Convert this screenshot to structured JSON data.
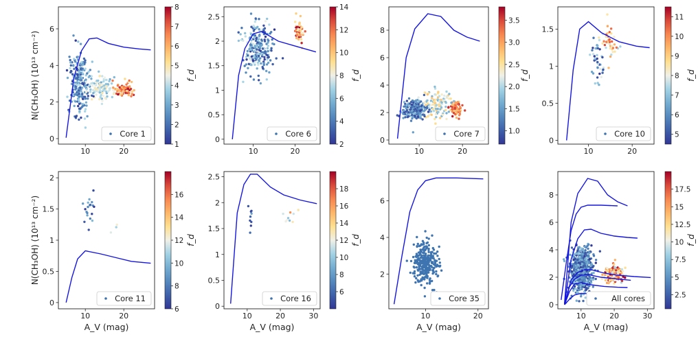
{
  "figure": {
    "ylabel_text": "N(CH₃OH) (10¹³ cm⁻²)",
    "xlabel_text": "A_V (mag)",
    "colorbar_label": "f_d",
    "colors": {
      "model_line": "#1515e0",
      "point_default": "#3e74b0",
      "frame": "#222222"
    }
  },
  "chart_data": [
    {
      "id": "core1",
      "type": "scatter",
      "title": "",
      "legend": "Core 1",
      "xlabel": "",
      "ylabel": "N(CH₃OH) (10¹³ cm⁻²)",
      "xlim": [
        3,
        28
      ],
      "ylim": [
        -0.3,
        7.2
      ],
      "xticks": [
        10,
        20
      ],
      "yticks": [
        0,
        2,
        4,
        6
      ],
      "colorbar": {
        "range": [
          1,
          8
        ],
        "ticks": [
          1,
          2,
          3,
          4,
          5,
          6,
          7,
          8
        ]
      },
      "seed": 1,
      "n": 420,
      "model_line": [
        [
          5,
          0.05
        ],
        [
          7,
          3.3
        ],
        [
          9,
          4.8
        ],
        [
          11,
          5.45
        ],
        [
          13,
          5.5
        ],
        [
          16,
          5.2
        ],
        [
          20,
          5.0
        ],
        [
          24,
          4.9
        ],
        [
          27,
          4.85
        ]
      ],
      "clusters": [
        {
          "cx": 8.5,
          "cy": 3.0,
          "sx": 2.2,
          "sy": 1.2,
          "fd": [
            1,
            4
          ],
          "w": 0.6
        },
        {
          "cx": 14,
          "cy": 2.8,
          "sx": 3.0,
          "sy": 0.45,
          "fd": [
            3,
            5
          ],
          "w": 0.25
        },
        {
          "cx": 20,
          "cy": 2.7,
          "sx": 2.5,
          "sy": 0.25,
          "fd": [
            5,
            8
          ],
          "w": 0.15
        }
      ]
    },
    {
      "id": "core6",
      "type": "scatter",
      "legend": "Core 6",
      "xlabel": "",
      "ylabel": "",
      "xlim": [
        3,
        26
      ],
      "ylim": [
        -0.1,
        2.7
      ],
      "xticks": [
        10,
        20
      ],
      "yticks": [
        0.0,
        0.5,
        1.0,
        1.5,
        2.0,
        2.5
      ],
      "colorbar": {
        "range": [
          2,
          14
        ],
        "ticks": [
          2,
          4,
          6,
          8,
          10,
          12,
          14
        ]
      },
      "seed": 6,
      "n": 300,
      "model_line": [
        [
          5,
          0.0
        ],
        [
          6.5,
          1.3
        ],
        [
          8,
          1.85
        ],
        [
          10,
          2.15
        ],
        [
          12,
          2.2
        ],
        [
          16,
          2.0
        ],
        [
          20,
          1.9
        ],
        [
          25,
          1.78
        ]
      ],
      "clusters": [
        {
          "cx": 11,
          "cy": 1.85,
          "sx": 3.2,
          "sy": 0.35,
          "fd": [
            2,
            8
          ],
          "w": 0.8
        },
        {
          "cx": 21,
          "cy": 2.2,
          "sx": 1.0,
          "sy": 0.15,
          "fd": [
            8,
            14
          ],
          "w": 0.2
        }
      ]
    },
    {
      "id": "core7",
      "type": "scatter",
      "legend": "Core 7",
      "xlabel": "",
      "ylabel": "",
      "xlim": [
        3,
        26
      ],
      "ylim": [
        -0.3,
        9.7
      ],
      "xticks": [
        10,
        20
      ],
      "yticks": [
        0,
        2,
        4,
        6,
        8
      ],
      "colorbar": {
        "range": [
          0.7,
          3.8
        ],
        "ticks": [
          1.0,
          1.5,
          2.0,
          2.5,
          3.0,
          3.5
        ]
      },
      "seed": 7,
      "n": 380,
      "model_line": [
        [
          5,
          0.1
        ],
        [
          7,
          6.0
        ],
        [
          9,
          8.1
        ],
        [
          12,
          9.2
        ],
        [
          15,
          9.0
        ],
        [
          18,
          8.0
        ],
        [
          21,
          7.5
        ],
        [
          24,
          7.2
        ]
      ],
      "clusters": [
        {
          "cx": 9,
          "cy": 2.2,
          "sx": 2.5,
          "sy": 0.5,
          "fd": [
            0.8,
            1.8
          ],
          "w": 0.5
        },
        {
          "cx": 14,
          "cy": 2.6,
          "sx": 3,
          "sy": 0.7,
          "fd": [
            1.6,
            2.8
          ],
          "w": 0.35
        },
        {
          "cx": 18.5,
          "cy": 2.3,
          "sx": 1.5,
          "sy": 0.35,
          "fd": [
            2.6,
            3.7
          ],
          "w": 0.15
        }
      ]
    },
    {
      "id": "core10",
      "type": "scatter",
      "legend": "Core 10",
      "xlabel": "",
      "ylabel": "",
      "xlim": [
        3,
        25
      ],
      "ylim": [
        -0.05,
        1.8
      ],
      "xticks": [
        10,
        20
      ],
      "yticks": [
        0.0,
        0.5,
        1.0,
        1.5
      ],
      "colorbar": {
        "range": [
          4.5,
          11.5
        ],
        "ticks": [
          5,
          6,
          7,
          8,
          9,
          10,
          11
        ]
      },
      "seed": 10,
      "n": 85,
      "model_line": [
        [
          5,
          0.0
        ],
        [
          6.5,
          0.95
        ],
        [
          8,
          1.5
        ],
        [
          10,
          1.6
        ],
        [
          13,
          1.45
        ],
        [
          17,
          1.33
        ],
        [
          21,
          1.27
        ],
        [
          24,
          1.25
        ]
      ],
      "clusters": [
        {
          "cx": 12,
          "cy": 1.1,
          "sx": 1.5,
          "sy": 0.2,
          "fd": [
            4.5,
            8
          ],
          "w": 0.5
        },
        {
          "cx": 14.5,
          "cy": 1.35,
          "sx": 2.0,
          "sy": 0.18,
          "fd": [
            7,
            11
          ],
          "w": 0.5
        }
      ]
    },
    {
      "id": "core11",
      "type": "scatter",
      "legend": "Core 11",
      "xlabel": "A_V (mag)",
      "ylabel": "N(CH₃OH) (10¹³ cm⁻²)",
      "xlim": [
        3,
        28
      ],
      "ylim": [
        -0.1,
        2.1
      ],
      "xticks": [
        10,
        20
      ],
      "yticks": [
        0.0,
        0.5,
        1.0,
        1.5,
        2.0
      ],
      "colorbar": {
        "range": [
          6,
          18
        ],
        "ticks": [
          6,
          8,
          10,
          12,
          14,
          16
        ]
      },
      "seed": 11,
      "n": 22,
      "model_line": [
        [
          5,
          0.0
        ],
        [
          6.5,
          0.4
        ],
        [
          8,
          0.7
        ],
        [
          10,
          0.83
        ],
        [
          14,
          0.78
        ],
        [
          18,
          0.72
        ],
        [
          22,
          0.66
        ],
        [
          27,
          0.63
        ]
      ],
      "clusters": [
        {
          "cx": 11,
          "cy": 1.5,
          "sx": 1.5,
          "sy": 0.25,
          "fd": [
            6,
            10
          ],
          "w": 0.75
        },
        {
          "cx": 16,
          "cy": 1.2,
          "sx": 3,
          "sy": 0.1,
          "fd": [
            10,
            14
          ],
          "w": 0.25
        }
      ]
    },
    {
      "id": "core16",
      "type": "scatter",
      "legend": "Core 16",
      "xlabel": "A_V (mag)",
      "ylabel": "",
      "xlim": [
        3,
        32
      ],
      "ylim": [
        -0.05,
        2.6
      ],
      "xticks": [
        10,
        20,
        30
      ],
      "yticks": [
        0.0,
        0.5,
        1.0,
        1.5,
        2.0,
        2.5
      ],
      "colorbar": {
        "range": [
          4,
          20
        ],
        "ticks": [
          6,
          8,
          10,
          12,
          14,
          16,
          18
        ]
      },
      "seed": 16,
      "n": 18,
      "model_line": [
        [
          5,
          0.05
        ],
        [
          7,
          1.8
        ],
        [
          9,
          2.35
        ],
        [
          11,
          2.55
        ],
        [
          13,
          2.55
        ],
        [
          17,
          2.3
        ],
        [
          21,
          2.15
        ],
        [
          26,
          2.05
        ],
        [
          31,
          1.98
        ]
      ],
      "clusters": [
        {
          "cx": 11,
          "cy": 1.75,
          "sx": 0.8,
          "sy": 0.2,
          "fd": [
            4,
            9
          ],
          "w": 0.35
        },
        {
          "cx": 23,
          "cy": 1.7,
          "sx": 3,
          "sy": 0.15,
          "fd": [
            9,
            18
          ],
          "w": 0.65
        }
      ]
    },
    {
      "id": "core35",
      "type": "scatter",
      "legend": "Core 35",
      "xlabel": "A_V (mag)",
      "ylabel": "",
      "xlim": [
        3,
        22
      ],
      "ylim": [
        0.1,
        7.6
      ],
      "xticks": [
        10,
        20
      ],
      "yticks": [
        2,
        4,
        6
      ],
      "colorbar": null,
      "seed": 35,
      "n": 300,
      "model_line": [
        [
          4,
          0.35
        ],
        [
          5.5,
          3.0
        ],
        [
          7,
          5.4
        ],
        [
          8.5,
          6.6
        ],
        [
          10,
          7.1
        ],
        [
          12,
          7.25
        ],
        [
          16,
          7.25
        ],
        [
          21,
          7.2
        ]
      ],
      "clusters": [
        {
          "cx": 10,
          "cy": 2.6,
          "sx": 2.0,
          "sy": 0.8,
          "fd": [
            0,
            0
          ],
          "w": 1.0
        }
      ]
    },
    {
      "id": "all",
      "type": "scatter",
      "legend": "All cores",
      "xlabel": "A_V (mag)",
      "ylabel": "",
      "xlim": [
        3,
        32
      ],
      "ylim": [
        -0.3,
        9.7
      ],
      "xticks": [
        10,
        20,
        30
      ],
      "yticks": [
        0,
        2,
        4,
        6,
        8
      ],
      "colorbar": {
        "range": [
          0.5,
          20
        ],
        "ticks": [
          2.5,
          5.0,
          7.5,
          10.0,
          12.5,
          15.0,
          17.5
        ]
      },
      "seed": 99,
      "n": 900,
      "model_lines": [
        [
          [
            5,
            0.1
          ],
          [
            7,
            6.0
          ],
          [
            9,
            8.1
          ],
          [
            12,
            9.2
          ],
          [
            15,
            9.0
          ],
          [
            18,
            8.0
          ],
          [
            21,
            7.5
          ],
          [
            24,
            7.2
          ]
        ],
        [
          [
            4,
            0.35
          ],
          [
            5.5,
            3.0
          ],
          [
            7,
            5.4
          ],
          [
            8.5,
            6.6
          ],
          [
            10,
            7.1
          ],
          [
            12,
            7.25
          ],
          [
            16,
            7.25
          ],
          [
            21,
            7.2
          ]
        ],
        [
          [
            5,
            0.05
          ],
          [
            7,
            3.3
          ],
          [
            9,
            4.8
          ],
          [
            11,
            5.45
          ],
          [
            13,
            5.5
          ],
          [
            16,
            5.2
          ],
          [
            20,
            5.0
          ],
          [
            24,
            4.9
          ],
          [
            27,
            4.85
          ]
        ],
        [
          [
            5,
            0.05
          ],
          [
            7,
            1.8
          ],
          [
            9,
            2.35
          ],
          [
            11,
            2.55
          ],
          [
            13,
            2.55
          ],
          [
            17,
            2.3
          ],
          [
            21,
            2.15
          ],
          [
            26,
            2.05
          ],
          [
            31,
            1.98
          ]
        ],
        [
          [
            5,
            0.0
          ],
          [
            6.5,
            1.3
          ],
          [
            8,
            1.85
          ],
          [
            10,
            2.15
          ],
          [
            12,
            2.2
          ],
          [
            16,
            2.0
          ],
          [
            20,
            1.9
          ],
          [
            25,
            1.78
          ]
        ],
        [
          [
            5,
            0.0
          ],
          [
            6.5,
            0.95
          ],
          [
            8,
            1.5
          ],
          [
            10,
            1.6
          ],
          [
            13,
            1.45
          ],
          [
            17,
            1.33
          ],
          [
            21,
            1.27
          ],
          [
            24,
            1.25
          ]
        ],
        [
          [
            5,
            0.0
          ],
          [
            6.5,
            0.4
          ],
          [
            8,
            0.7
          ],
          [
            10,
            0.83
          ],
          [
            14,
            0.78
          ],
          [
            18,
            0.72
          ],
          [
            22,
            0.66
          ],
          [
            27,
            0.63
          ]
        ]
      ],
      "clusters": [
        {
          "cx": 10,
          "cy": 2.6,
          "sx": 3,
          "sy": 1.0,
          "fd": [
            0.5,
            8
          ],
          "w": 0.8
        },
        {
          "cx": 20,
          "cy": 2.2,
          "sx": 2.5,
          "sy": 0.4,
          "fd": [
            8,
            20
          ],
          "w": 0.2
        }
      ]
    }
  ]
}
